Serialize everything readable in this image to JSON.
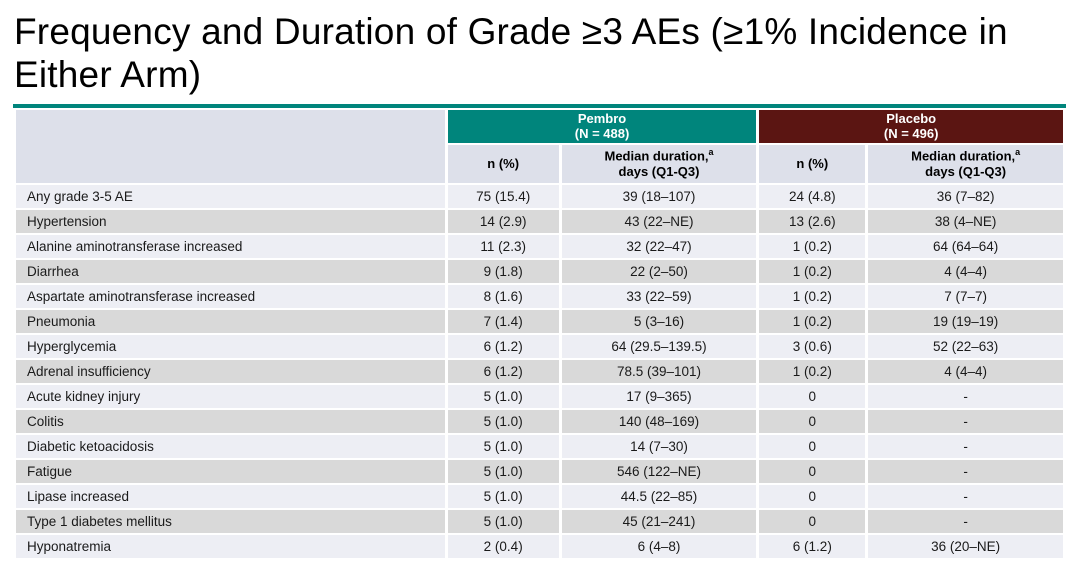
{
  "slide": {
    "title_line1": "Frequency and Duration of Grade ≥3 AEs (≥1% Incidence in",
    "title_line2": "Either Arm)"
  },
  "colors": {
    "teal": "#00857C",
    "maroon": "#5B1512",
    "header_bg": "#DDE0EA",
    "row_light": "#EDEEF4",
    "row_gray": "#D9D9D9"
  },
  "table": {
    "groups": [
      {
        "name": "Pembro",
        "n": "(N = 488)"
      },
      {
        "name": "Placebo",
        "n": "(N = 496)"
      }
    ],
    "subheader": {
      "n_label": "n (%)",
      "duration_line1": "Median duration,",
      "duration_sup": "a",
      "duration_line2": "days (Q1-Q3)"
    },
    "rows": [
      {
        "ae": "Any grade 3-5 AE",
        "pembro_n": "75 (15.4)",
        "pembro_duration": "39 (18–107)",
        "placebo_n": "24 (4.8)",
        "placebo_duration": "36 (7–82)"
      },
      {
        "ae": "Hypertension",
        "pembro_n": "14 (2.9)",
        "pembro_duration": "43 (22–NE)",
        "placebo_n": "13 (2.6)",
        "placebo_duration": "38 (4–NE)"
      },
      {
        "ae": "Alanine aminotransferase increased",
        "pembro_n": "11 (2.3)",
        "pembro_duration": "32 (22–47)",
        "placebo_n": "1 (0.2)",
        "placebo_duration": "64 (64–64)"
      },
      {
        "ae": "Diarrhea",
        "pembro_n": "9 (1.8)",
        "pembro_duration": "22 (2–50)",
        "placebo_n": "1 (0.2)",
        "placebo_duration": "4 (4–4)"
      },
      {
        "ae": "Aspartate aminotransferase increased",
        "pembro_n": "8 (1.6)",
        "pembro_duration": "33 (22–59)",
        "placebo_n": "1 (0.2)",
        "placebo_duration": "7 (7–7)"
      },
      {
        "ae": "Pneumonia",
        "pembro_n": "7 (1.4)",
        "pembro_duration": "5 (3–16)",
        "placebo_n": "1 (0.2)",
        "placebo_duration": "19 (19–19)"
      },
      {
        "ae": "Hyperglycemia",
        "pembro_n": "6 (1.2)",
        "pembro_duration": "64 (29.5–139.5)",
        "placebo_n": "3 (0.6)",
        "placebo_duration": "52 (22–63)"
      },
      {
        "ae": "Adrenal insufficiency",
        "pembro_n": "6 (1.2)",
        "pembro_duration": "78.5 (39–101)",
        "placebo_n": "1 (0.2)",
        "placebo_duration": "4 (4–4)"
      },
      {
        "ae": "Acute kidney injury",
        "pembro_n": "5 (1.0)",
        "pembro_duration": "17 (9–365)",
        "placebo_n": "0",
        "placebo_duration": "-"
      },
      {
        "ae": "Colitis",
        "pembro_n": "5 (1.0)",
        "pembro_duration": "140 (48–169)",
        "placebo_n": "0",
        "placebo_duration": "-"
      },
      {
        "ae": "Diabetic ketoacidosis",
        "pembro_n": "5 (1.0)",
        "pembro_duration": "14 (7–30)",
        "placebo_n": "0",
        "placebo_duration": "-"
      },
      {
        "ae": "Fatigue",
        "pembro_n": "5 (1.0)",
        "pembro_duration": "546 (122–NE)",
        "placebo_n": "0",
        "placebo_duration": "-"
      },
      {
        "ae": "Lipase increased",
        "pembro_n": "5 (1.0)",
        "pembro_duration": "44.5 (22–85)",
        "placebo_n": "0",
        "placebo_duration": "-"
      },
      {
        "ae": "Type 1 diabetes mellitus",
        "pembro_n": "5 (1.0)",
        "pembro_duration": "45 (21–241)",
        "placebo_n": "0",
        "placebo_duration": "-"
      },
      {
        "ae": "Hyponatremia",
        "pembro_n": "2 (0.4)",
        "pembro_duration": "6 (4–8)",
        "placebo_n": "6 (1.2)",
        "placebo_duration": "36 (20–NE)"
      }
    ]
  }
}
